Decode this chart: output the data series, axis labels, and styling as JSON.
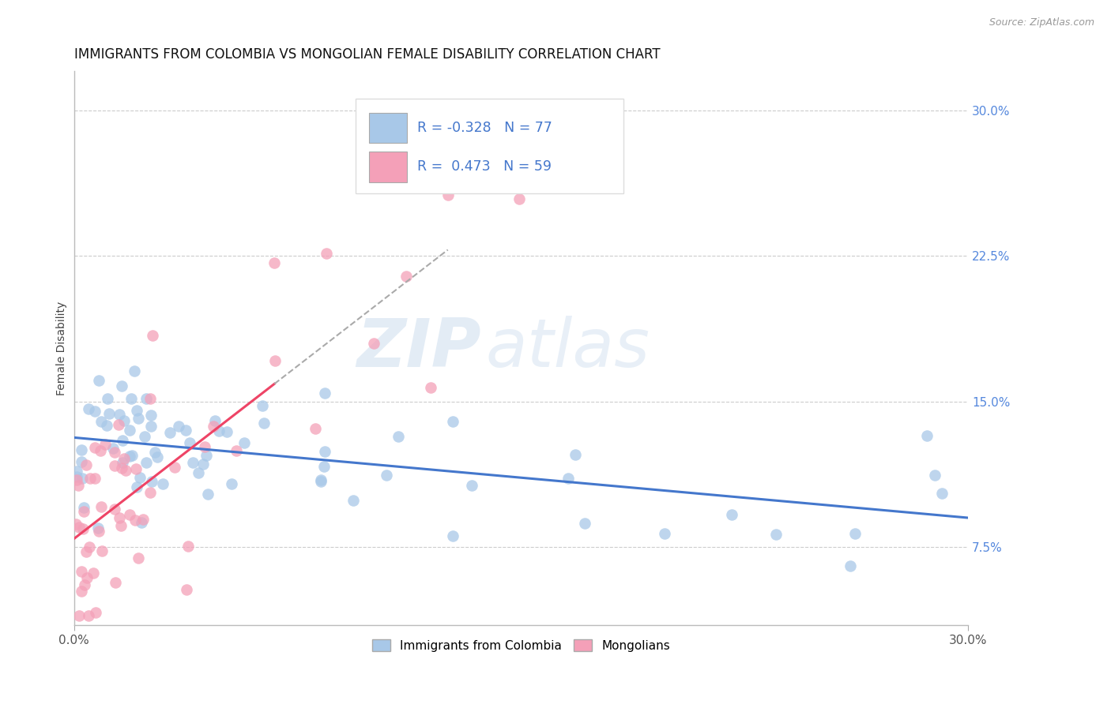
{
  "title": "IMMIGRANTS FROM COLOMBIA VS MONGOLIAN FEMALE DISABILITY CORRELATION CHART",
  "source": "Source: ZipAtlas.com",
  "ylabel": "Female Disability",
  "xlim": [
    0.0,
    30.0
  ],
  "ylim": [
    3.5,
    32.0
  ],
  "yticks": [
    7.5,
    15.0,
    22.5,
    30.0
  ],
  "blue_R": -0.328,
  "blue_N": 77,
  "pink_R": 0.473,
  "pink_N": 59,
  "blue_color": "#A8C8E8",
  "pink_color": "#F4A0B8",
  "blue_line_color": "#4477CC",
  "pink_line_color": "#EE4466",
  "grid_color": "#CCCCCC",
  "background_color": "#FFFFFF",
  "legend_label_blue": "Immigrants from Colombia",
  "legend_label_pink": "Mongolians",
  "watermark_zip": "ZIP",
  "watermark_atlas": "atlas",
  "title_fontsize": 12,
  "axis_label_fontsize": 10,
  "tick_fontsize": 11,
  "ytick_color": "#5588DD"
}
